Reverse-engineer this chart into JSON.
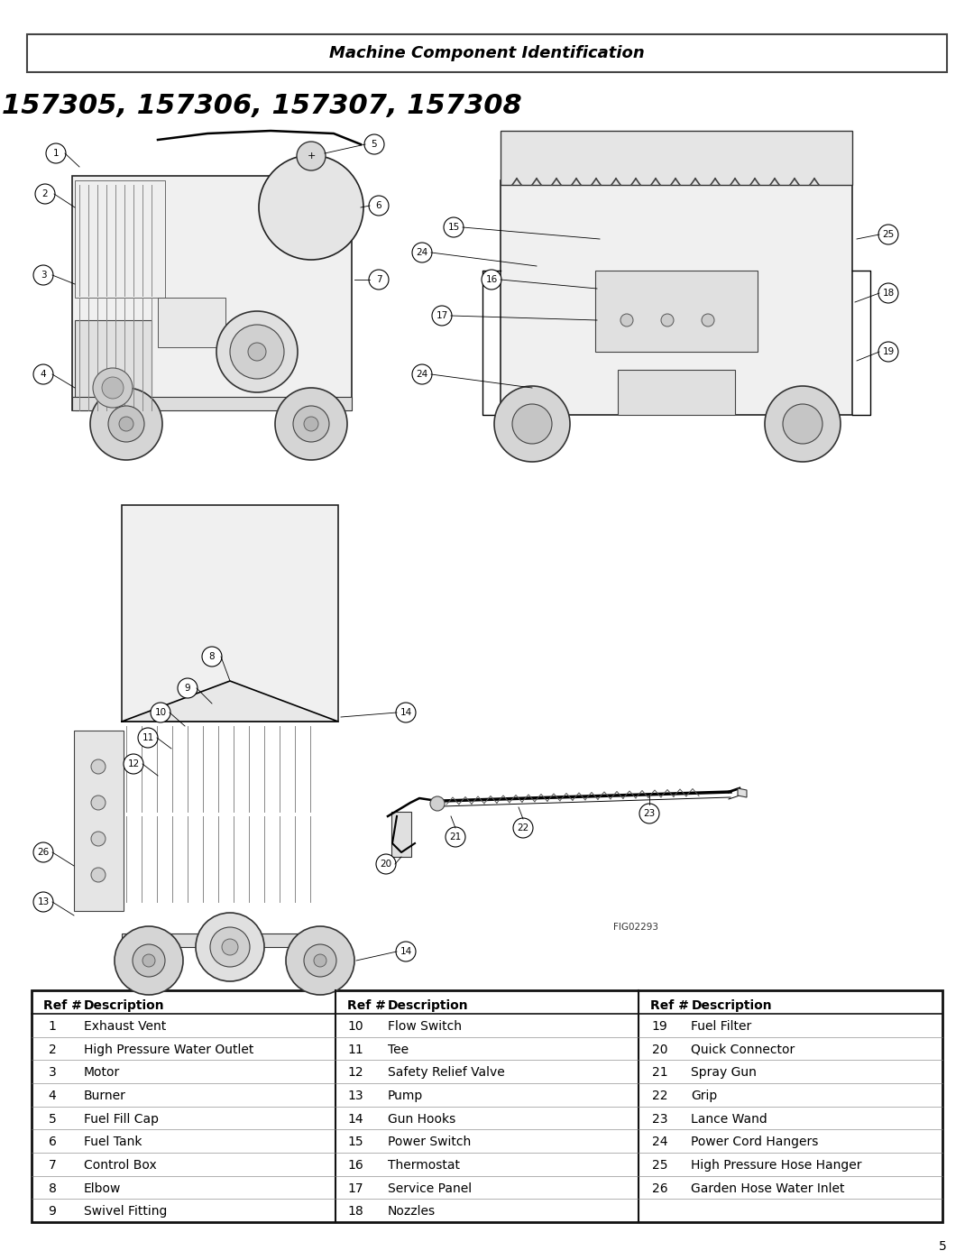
{
  "page_title": "Machine Component Identification",
  "model_numbers": "157305, 157306, 157307, 157308",
  "fig_label": "FIG02293",
  "page_number": "5",
  "background_color": "#ffffff",
  "table_columns": [
    {
      "header_ref": "Ref #",
      "header_desc": "Description",
      "rows": [
        [
          "1",
          "Exhaust Vent"
        ],
        [
          "2",
          "High Pressure Water Outlet"
        ],
        [
          "3",
          "Motor"
        ],
        [
          "4",
          "Burner"
        ],
        [
          "5",
          "Fuel Fill Cap"
        ],
        [
          "6",
          "Fuel Tank"
        ],
        [
          "7",
          "Control Box"
        ],
        [
          "8",
          "Elbow"
        ],
        [
          "9",
          "Swivel Fitting"
        ]
      ]
    },
    {
      "header_ref": "Ref #",
      "header_desc": "Description",
      "rows": [
        [
          "10",
          "Flow Switch"
        ],
        [
          "11",
          "Tee"
        ],
        [
          "12",
          "Safety Relief Valve"
        ],
        [
          "13",
          "Pump"
        ],
        [
          "14",
          "Gun Hooks"
        ],
        [
          "15",
          "Power Switch"
        ],
        [
          "16",
          "Thermostat"
        ],
        [
          "17",
          "Service Panel"
        ],
        [
          "18",
          "Nozzles"
        ]
      ]
    },
    {
      "header_ref": "Ref #",
      "header_desc": "Description",
      "rows": [
        [
          "19",
          "Fuel Filter"
        ],
        [
          "20",
          "Quick Connector"
        ],
        [
          "21",
          "Spray Gun"
        ],
        [
          "22",
          "Grip"
        ],
        [
          "23",
          "Lance Wand"
        ],
        [
          "24",
          "Power Cord Hangers"
        ],
        [
          "25",
          "High Pressure Hose Hanger"
        ],
        [
          "26",
          "Garden Hose Water Inlet"
        ],
        [
          "",
          ""
        ]
      ]
    }
  ],
  "title_fontsize": 13,
  "model_fontsize": 22,
  "table_fontsize": 10,
  "header_fontsize": 10
}
